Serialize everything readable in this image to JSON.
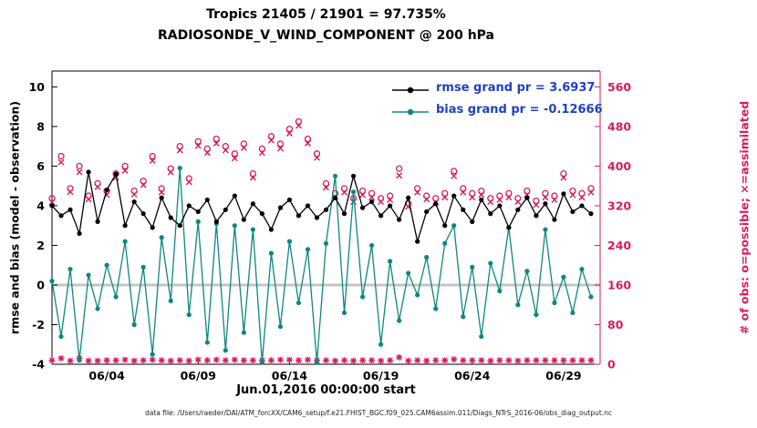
{
  "chart": {
    "title1": "Tropics 21405 / 21901 = 97.735%",
    "title2": "RADIOSONDE_V_WIND_COMPONENT @ 200 hPa",
    "xlabel": "Jun.01,2016 00:00:00 start",
    "ylabel_left": "rmse and bias (model - observation)",
    "ylabel_right": "# of obs: o=possible; ×=assimilated",
    "caption": "data file: /Users/raeder/DAI/ATM_forcXX/CAM6_setup/f.e21.FHIST_BGC.f09_025.CAM6assim.011/Diags_NTrS_2016-06/obs_diag_output.nc",
    "legend": [
      {
        "label": "rmse grand pr = 3.6937",
        "color": "#000000"
      },
      {
        "label": "bias grand pr = -0.12666",
        "color": "#0e8682"
      }
    ],
    "style": {
      "obs_color": "#d81b60",
      "rmse_color": "#000000",
      "bias_color": "#0e8682",
      "zero_line_color": "#c4c4c4",
      "legend_text_color": "#2040c8",
      "background": "#ffffff"
    }
  },
  "chart_data": {
    "type": "line",
    "x_axis": {
      "min": 1,
      "max": 31,
      "tick_days": [
        4,
        9,
        14,
        19,
        24,
        29
      ],
      "tick_labels": [
        "06/04",
        "06/09",
        "06/14",
        "06/19",
        "06/24",
        "06/29"
      ]
    },
    "left_axis": {
      "min": -4,
      "max": 10.8,
      "ticks": [
        -4,
        -2,
        0,
        2,
        4,
        6,
        8,
        10
      ]
    },
    "right_axis": {
      "min": 0,
      "max": 592,
      "ticks": [
        0,
        80,
        160,
        240,
        320,
        400,
        480,
        560
      ]
    },
    "zero_line": 0,
    "x_days": [
      1,
      1.5,
      2,
      2.5,
      3,
      3.5,
      4,
      4.5,
      5,
      5.5,
      6,
      6.5,
      7,
      7.5,
      8,
      8.5,
      9,
      9.5,
      10,
      10.5,
      11,
      11.5,
      12,
      12.5,
      13,
      13.5,
      14,
      14.5,
      15,
      15.5,
      16,
      16.5,
      17,
      17.5,
      18,
      18.5,
      19,
      19.5,
      20,
      20.5,
      21,
      21.5,
      22,
      22.5,
      23,
      23.5,
      24,
      24.5,
      25,
      25.5,
      26,
      26.5,
      27,
      27.5,
      28,
      28.5,
      29,
      29.5,
      30,
      30.5
    ],
    "series": [
      {
        "name": "obs_possible",
        "axis": "right",
        "color": "#d81b60",
        "marker": "open-circle",
        "line": false,
        "values": [
          335,
          420,
          355,
          400,
          340,
          365,
          350,
          385,
          400,
          350,
          370,
          420,
          355,
          395,
          440,
          375,
          450,
          435,
          455,
          440,
          425,
          445,
          385,
          435,
          460,
          445,
          475,
          490,
          455,
          425,
          365,
          345,
          355,
          335,
          350,
          345,
          335,
          340,
          395,
          325,
          355,
          340,
          335,
          345,
          390,
          355,
          345,
          350,
          335,
          340,
          345,
          335,
          350,
          330,
          345,
          340,
          385,
          350,
          345,
          355
        ]
      },
      {
        "name": "obs_assimilated",
        "axis": "right",
        "color": "#d81b60",
        "marker": "x",
        "line": false,
        "values": [
          327,
          408,
          348,
          388,
          333,
          358,
          342,
          377,
          391,
          343,
          362,
          411,
          347,
          388,
          432,
          368,
          441,
          427,
          446,
          432,
          416,
          437,
          377,
          427,
          452,
          436,
          466,
          482,
          446,
          417,
          357,
          338,
          347,
          328,
          342,
          337,
          328,
          332,
          381,
          318,
          347,
          333,
          327,
          337,
          380,
          347,
          337,
          342,
          328,
          332,
          337,
          328,
          342,
          322,
          337,
          332,
          377,
          342,
          337,
          347
        ]
      },
      {
        "name": "obs_not_assimilated",
        "axis": "right",
        "color": "#d81b60",
        "marker": "asterisk",
        "line": false,
        "values": [
          8,
          12,
          7,
          12,
          7,
          7,
          8,
          8,
          9,
          7,
          8,
          9,
          8,
          7,
          8,
          7,
          9,
          8,
          9,
          8,
          9,
          8,
          8,
          8,
          8,
          9,
          9,
          8,
          9,
          8,
          8,
          7,
          8,
          7,
          8,
          8,
          7,
          8,
          14,
          7,
          8,
          7,
          8,
          8,
          10,
          8,
          8,
          8,
          7,
          8,
          8,
          7,
          8,
          8,
          8,
          8,
          8,
          8,
          8,
          8
        ]
      },
      {
        "name": "bias",
        "axis": "left",
        "color": "#0e8682",
        "marker": "filled-circle",
        "line": true,
        "values": [
          0.2,
          -2.6,
          0.8,
          -3.8,
          0.5,
          -1.2,
          1.0,
          -0.6,
          2.2,
          -2.0,
          0.9,
          -3.5,
          2.4,
          -0.8,
          5.9,
          -1.5,
          3.2,
          -2.9,
          3.1,
          -3.3,
          3.0,
          -2.4,
          2.8,
          -3.9,
          1.6,
          -2.1,
          2.2,
          -0.9,
          1.8,
          -3.9,
          2.1,
          5.5,
          -1.4,
          4.7,
          -0.6,
          2.0,
          -3.0,
          1.2,
          -1.8,
          0.6,
          -0.5,
          1.4,
          -1.2,
          2.1,
          3.0,
          -1.6,
          0.9,
          -2.6,
          1.1,
          -0.3,
          2.9,
          -1.0,
          0.7,
          -1.5,
          2.8,
          -0.9,
          0.4,
          -1.4,
          0.8,
          -0.6
        ]
      },
      {
        "name": "rmse",
        "axis": "left",
        "color": "#000000",
        "marker": "filled-circle",
        "line": true,
        "values": [
          4.0,
          3.5,
          3.8,
          2.6,
          5.7,
          3.2,
          4.8,
          5.6,
          3.0,
          4.2,
          3.6,
          2.9,
          4.4,
          3.4,
          3.0,
          4.0,
          3.7,
          4.3,
          3.2,
          3.8,
          4.5,
          3.3,
          4.1,
          3.6,
          2.8,
          3.9,
          4.3,
          3.5,
          4.0,
          3.4,
          3.8,
          4.4,
          3.6,
          5.5,
          3.9,
          4.2,
          3.5,
          4.0,
          3.3,
          4.4,
          2.2,
          3.7,
          4.1,
          3.0,
          4.5,
          3.8,
          3.2,
          4.3,
          3.6,
          4.0,
          2.9,
          3.8,
          4.4,
          3.5,
          4.1,
          3.3,
          4.6,
          3.7,
          4.0,
          3.6
        ]
      }
    ]
  }
}
